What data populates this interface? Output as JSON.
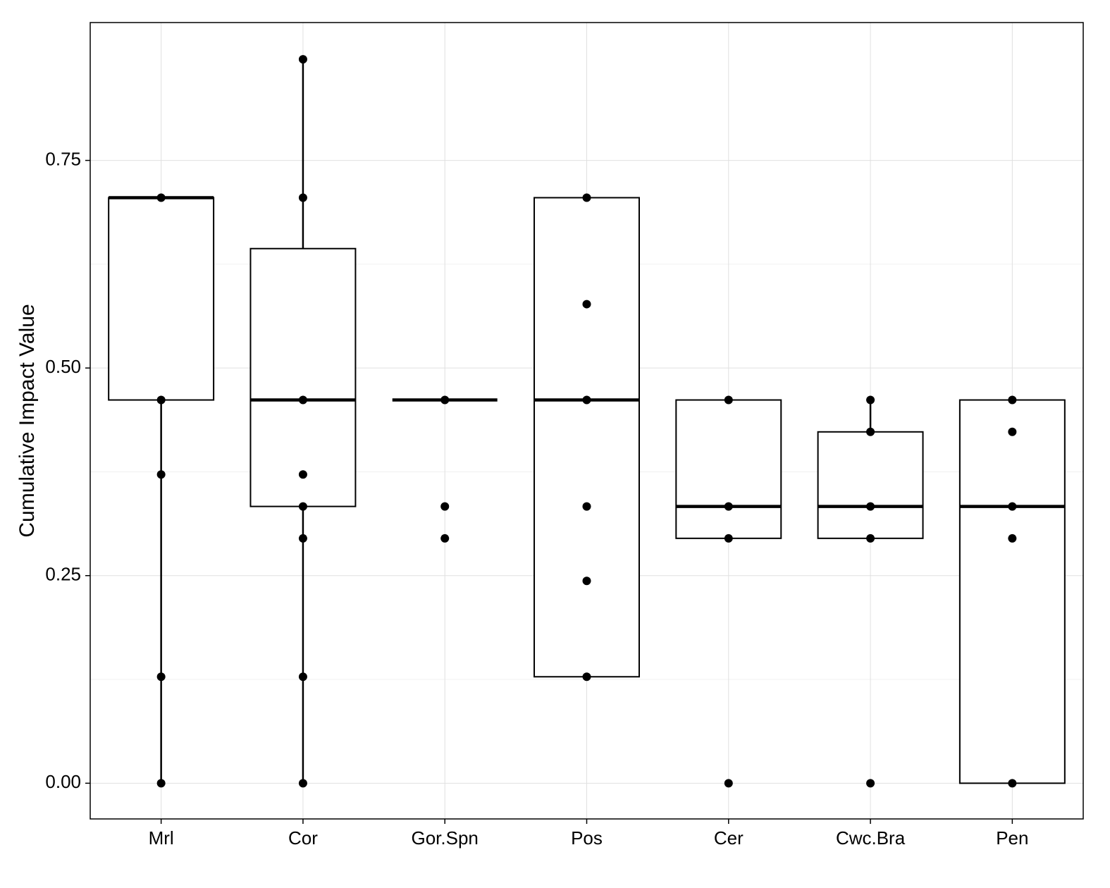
{
  "chart_data": {
    "type": "boxplot",
    "title": "",
    "xlabel": "",
    "ylabel": "Cumulative Impact Value",
    "ylim": [
      -0.043,
      0.916
    ],
    "yticks": [
      0.0,
      0.25,
      0.5,
      0.75
    ],
    "ytick_labels": [
      "0.00",
      "0.25",
      "0.50",
      "0.75"
    ],
    "grid": true,
    "legend": "none",
    "categories": [
      "Mrl",
      "Cor",
      "Gor.Spn",
      "Pos",
      "Cer",
      "Cwc.Bra",
      "Pen"
    ],
    "boxes": [
      {
        "category": "Mrl",
        "q1": 0.4615,
        "median": 0.7051,
        "q3": 0.7051,
        "whisker_low": 0.0,
        "whisker_high": 0.7051
      },
      {
        "category": "Cor",
        "q1": 0.3333,
        "median": 0.4615,
        "q3": 0.6438,
        "whisker_low": 0.0,
        "whisker_high": 0.8718
      },
      {
        "category": "Gor.Spn",
        "q1": 0.4615,
        "median": 0.4615,
        "q3": 0.4615,
        "whisker_low": 0.4615,
        "whisker_high": 0.4615
      },
      {
        "category": "Pos",
        "q1": 0.1282,
        "median": 0.4615,
        "q3": 0.7051,
        "whisker_low": 0.1282,
        "whisker_high": 0.7051
      },
      {
        "category": "Cer",
        "q1": 0.2949,
        "median": 0.3333,
        "q3": 0.4615,
        "whisker_low": 0.2949,
        "whisker_high": 0.4615
      },
      {
        "category": "Cwc.Bra",
        "q1": 0.2949,
        "median": 0.3333,
        "q3": 0.4231,
        "whisker_low": 0.2949,
        "whisker_high": 0.4615
      },
      {
        "category": "Pen",
        "q1": 0.0,
        "median": 0.3333,
        "q3": 0.4615,
        "whisker_low": 0.0,
        "whisker_high": 0.4615
      }
    ],
    "points": [
      {
        "category": "Mrl",
        "values": [
          0.7051,
          0.4615,
          0.3718,
          0.1282,
          0.0
        ]
      },
      {
        "category": "Cor",
        "values": [
          0.8718,
          0.7051,
          0.4615,
          0.3718,
          0.3333,
          0.2949,
          0.1282,
          0.0
        ]
      },
      {
        "category": "Gor.Spn",
        "values": [
          0.4615,
          0.3333,
          0.2949
        ]
      },
      {
        "category": "Pos",
        "values": [
          0.7051,
          0.5769,
          0.4615,
          0.3333,
          0.2436,
          0.1282
        ]
      },
      {
        "category": "Cer",
        "values": [
          0.4615,
          0.3333,
          0.2949,
          0.0
        ]
      },
      {
        "category": "Cwc.Bra",
        "values": [
          0.4615,
          0.4231,
          0.3333,
          0.2949,
          0.0
        ]
      },
      {
        "category": "Pen",
        "values": [
          0.4615,
          0.4231,
          0.3333,
          0.2949,
          0.0
        ]
      }
    ]
  }
}
